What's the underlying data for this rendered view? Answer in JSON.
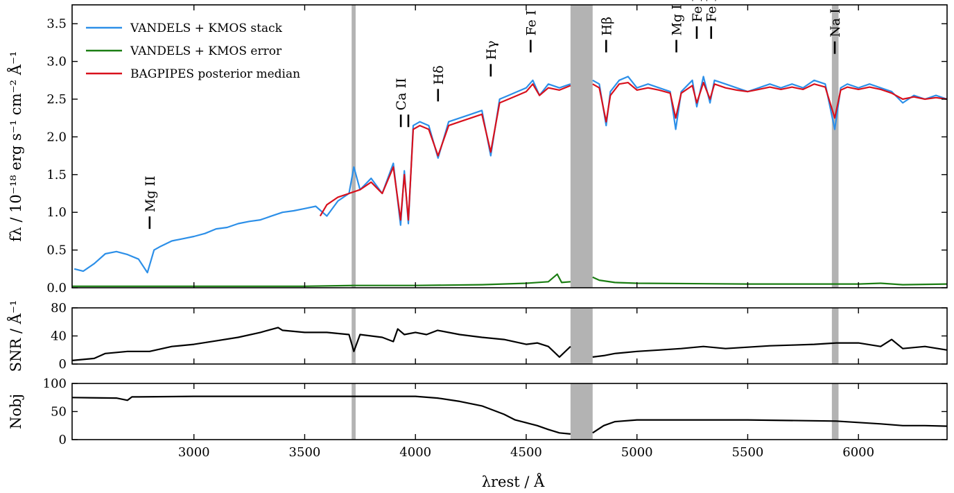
{
  "chart_data": {
    "type": "line",
    "xlabel": "λrest / Å",
    "xlim": [
      2450,
      6400
    ],
    "xticks": [
      3000,
      3500,
      4000,
      4500,
      5000,
      5500,
      6000
    ],
    "masked_regions": [
      [
        3712,
        3730
      ],
      [
        4700,
        4800
      ],
      [
        5880,
        5910
      ]
    ],
    "panels": [
      {
        "id": "flux",
        "ylabel": "fλ / 10⁻¹⁸ erg s⁻¹ cm⁻² Å⁻¹",
        "ylim": [
          0,
          3.75
        ],
        "yticks": [
          0.0,
          0.5,
          1.0,
          1.5,
          2.0,
          2.5,
          3.0,
          3.5
        ],
        "ytick_labels": [
          "0.0",
          "0.5",
          "1.0",
          "1.5",
          "2.0",
          "2.5",
          "3.0",
          "3.5"
        ],
        "legend_position": "top-left",
        "series": [
          {
            "name": "VANDELS + KMOS stack",
            "color": "#2c8fe8",
            "x": [
              2460,
              2500,
              2550,
              2600,
              2650,
              2700,
              2750,
              2790,
              2820,
              2850,
              2900,
              2950,
              3000,
              3050,
              3100,
              3150,
              3200,
              3250,
              3300,
              3350,
              3400,
              3450,
              3500,
              3550,
              3600,
              3650,
              3700,
              3722,
              3750,
              3800,
              3850,
              3900,
              3933,
              3950,
              3968,
              3990,
              4020,
              4060,
              4102,
              4150,
              4200,
              4250,
              4300,
              4340,
              4380,
              4420,
              4460,
              4500,
              4530,
              4560,
              4600,
              4650,
              4700
            ],
            "y": [
              0.25,
              0.22,
              0.32,
              0.45,
              0.48,
              0.44,
              0.38,
              0.2,
              0.5,
              0.55,
              0.62,
              0.65,
              0.68,
              0.72,
              0.78,
              0.8,
              0.85,
              0.88,
              0.9,
              0.95,
              1.0,
              1.02,
              1.05,
              1.08,
              0.95,
              1.15,
              1.25,
              1.6,
              1.3,
              1.45,
              1.25,
              1.65,
              0.83,
              1.55,
              0.85,
              2.15,
              2.2,
              2.15,
              1.72,
              2.2,
              2.25,
              2.3,
              2.35,
              1.75,
              2.5,
              2.55,
              2.6,
              2.65,
              2.75,
              2.55,
              2.7,
              2.65,
              2.7
            ]
          },
          {
            "name": "",
            "color": "#2c8fe8",
            "x": [
              4800,
              4830,
              4861,
              4880,
              4920,
              4960,
              5000,
              5050,
              5100,
              5150,
              5175,
              5200,
              5250,
              5270,
              5300,
              5330,
              5350,
              5400,
              5450,
              5500,
              5550,
              5600,
              5650,
              5700,
              5750,
              5800,
              5850,
              5893,
              5920,
              5950,
              6000,
              6050,
              6100,
              6150,
              6200,
              6250,
              6300,
              6350,
              6400
            ],
            "y": [
              2.75,
              2.7,
              2.15,
              2.6,
              2.75,
              2.8,
              2.65,
              2.7,
              2.65,
              2.6,
              2.1,
              2.6,
              2.75,
              2.4,
              2.8,
              2.45,
              2.75,
              2.7,
              2.65,
              2.6,
              2.65,
              2.7,
              2.65,
              2.7,
              2.65,
              2.75,
              2.7,
              2.1,
              2.65,
              2.7,
              2.65,
              2.7,
              2.65,
              2.6,
              2.45,
              2.55,
              2.5,
              2.55,
              2.5
            ]
          },
          {
            "name": "VANDELS + KMOS error",
            "color": "#1a7d12",
            "x": [
              2450,
              3000,
              3500,
              3720,
              4000,
              4300,
              4500,
              4600,
              4640,
              4660,
              4700
            ],
            "y": [
              0.02,
              0.02,
              0.02,
              0.03,
              0.03,
              0.04,
              0.06,
              0.08,
              0.18,
              0.07,
              0.08
            ]
          },
          {
            "name": "",
            "color": "#1a7d12",
            "x": [
              4800,
              4830,
              4900,
              5000,
              5500,
              6000,
              6100,
              6200,
              6400
            ],
            "y": [
              0.14,
              0.1,
              0.07,
              0.06,
              0.05,
              0.05,
              0.06,
              0.04,
              0.05
            ]
          },
          {
            "name": "BAGPIPES posterior median",
            "color": "#d8101c",
            "x": [
              3570,
              3600,
              3650,
              3700,
              3750,
              3800,
              3850,
              3900,
              3933,
              3950,
              3968,
              3990,
              4020,
              4060,
              4102,
              4150,
              4200,
              4250,
              4300,
              4340,
              4380,
              4420,
              4460,
              4500,
              4530,
              4560,
              4600,
              4650,
              4700
            ],
            "y": [
              0.95,
              1.1,
              1.2,
              1.25,
              1.3,
              1.4,
              1.25,
              1.6,
              0.9,
              1.5,
              0.9,
              2.1,
              2.15,
              2.1,
              1.75,
              2.15,
              2.2,
              2.25,
              2.3,
              1.8,
              2.45,
              2.5,
              2.55,
              2.6,
              2.7,
              2.55,
              2.65,
              2.62,
              2.68
            ]
          },
          {
            "name": "",
            "color": "#d8101c",
            "x": [
              4800,
              4830,
              4861,
              4880,
              4920,
              4960,
              5000,
              5050,
              5100,
              5150,
              5175,
              5200,
              5250,
              5270,
              5300,
              5330,
              5350,
              5400,
              5450,
              5500,
              5550,
              5600,
              5650,
              5700,
              5750,
              5800,
              5850,
              5893,
              5920,
              5950,
              6000,
              6050,
              6100,
              6150,
              6200,
              6250,
              6300,
              6350,
              6400
            ],
            "y": [
              2.7,
              2.65,
              2.2,
              2.55,
              2.7,
              2.72,
              2.62,
              2.65,
              2.62,
              2.58,
              2.25,
              2.58,
              2.68,
              2.45,
              2.72,
              2.5,
              2.7,
              2.65,
              2.62,
              2.6,
              2.63,
              2.66,
              2.63,
              2.66,
              2.63,
              2.7,
              2.66,
              2.25,
              2.62,
              2.66,
              2.63,
              2.66,
              2.63,
              2.58,
              2.5,
              2.53,
              2.5,
              2.52,
              2.5
            ]
          }
        ],
        "line_annotations": [
          {
            "label": "Mg II",
            "x": 2800,
            "y": 0.78
          },
          {
            "label": "Ca II",
            "x": 3934,
            "y": 2.13
          },
          {
            "label": "",
            "x": 3968,
            "y": 2.13
          },
          {
            "label": "Hδ",
            "x": 4102,
            "y": 2.47
          },
          {
            "label": "Hγ",
            "x": 4340,
            "y": 2.8
          },
          {
            "label": "Fe I",
            "x": 4520,
            "y": 3.12
          },
          {
            "label": "Hβ",
            "x": 4861,
            "y": 3.12
          },
          {
            "label": "Mg I",
            "x": 5178,
            "y": 3.12
          },
          {
            "label": "Fe I",
            "x": 5270,
            "y": 3.3
          },
          {
            "label": "Fe I",
            "x": 5335,
            "y": 3.3
          },
          {
            "label": "Na I",
            "x": 5893,
            "y": 3.1
          }
        ]
      },
      {
        "id": "snr",
        "ylabel": "SNR / Å⁻¹",
        "ylim": [
          0,
          80
        ],
        "yticks": [
          0,
          40,
          80
        ],
        "ytick_labels": [
          "0",
          "40",
          "80"
        ],
        "series": [
          {
            "name": "",
            "color": "#000000",
            "x": [
              2450,
              2550,
              2600,
              2700,
              2800,
              2900,
              3000,
              3100,
              3200,
              3300,
              3380,
              3400,
              3500,
              3600,
              3700,
              3722,
              3750,
              3800,
              3850,
              3900,
              3920,
              3950,
              4000,
              4050,
              4100,
              4200,
              4300,
              4400,
              4500,
              4550,
              4600,
              4650,
              4700
            ],
            "y": [
              5,
              8,
              15,
              18,
              18,
              25,
              28,
              33,
              38,
              45,
              52,
              48,
              45,
              45,
              42,
              18,
              42,
              40,
              38,
              32,
              50,
              42,
              45,
              42,
              48,
              42,
              38,
              35,
              28,
              30,
              25,
              10,
              25
            ]
          },
          {
            "name": "",
            "color": "#000000",
            "x": [
              4800,
              4850,
              4900,
              5000,
              5100,
              5200,
              5300,
              5400,
              5500,
              5600,
              5700,
              5800,
              5900,
              6000,
              6100,
              6150,
              6200,
              6300,
              6400
            ],
            "y": [
              10,
              12,
              15,
              18,
              20,
              22,
              25,
              22,
              24,
              26,
              27,
              28,
              30,
              30,
              25,
              35,
              22,
              25,
              20
            ]
          }
        ]
      },
      {
        "id": "nobj",
        "ylabel": "Nobj",
        "ylim": [
          0,
          100
        ],
        "yticks": [
          0,
          50,
          100
        ],
        "ytick_labels": [
          "0",
          "50",
          "100"
        ],
        "series": [
          {
            "name": "",
            "color": "#000000",
            "x": [
              2450,
              2650,
              2700,
              2720,
              2750,
              3000,
              3500,
              3720,
              4000,
              4100,
              4200,
              4300,
              4400,
              4450,
              4500,
              4550,
              4600,
              4650,
              4700
            ],
            "y": [
              75,
              74,
              70,
              76,
              76,
              77,
              77,
              77,
              77,
              74,
              68,
              60,
              45,
              35,
              30,
              25,
              18,
              12,
              10
            ]
          },
          {
            "name": "",
            "color": "#000000",
            "x": [
              4800,
              4850,
              4900,
              5000,
              5500,
              5900,
              6100,
              6200,
              6300,
              6400
            ],
            "y": [
              12,
              25,
              32,
              35,
              35,
              33,
              28,
              25,
              25,
              24
            ]
          }
        ]
      }
    ]
  }
}
